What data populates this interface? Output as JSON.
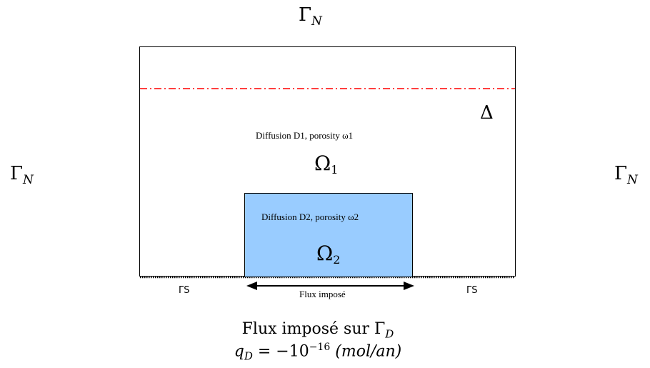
{
  "boundaries": {
    "top": {
      "symbol": "Γ",
      "sub": "N"
    },
    "left": {
      "symbol": "Γ",
      "sub": "N"
    },
    "right": {
      "symbol": "Γ",
      "sub": "N"
    },
    "bottom_left": "ΓS",
    "bottom_right": "ΓS"
  },
  "domain1": {
    "label": "Diffusion D1, porosity  ω1",
    "omega": "Ω",
    "omega_sub": "1"
  },
  "domain2": {
    "label": "Diffusion D2, porosity  ω2",
    "omega": "Ω",
    "omega_sub": "2"
  },
  "delta": "Δ",
  "flux_arrow_label": "Flux imposé",
  "caption": {
    "line1_text": "Flux imposé sur Γ",
    "line1_sub": "D",
    "line2_q": "q",
    "line2_q_sub": "D",
    "line2_eq": " = −10",
    "line2_exp": "−16",
    "line2_unit": "(mol/an)"
  },
  "colors": {
    "inner_fill": "#99ccff",
    "dashdot_line": "#ff0000"
  }
}
